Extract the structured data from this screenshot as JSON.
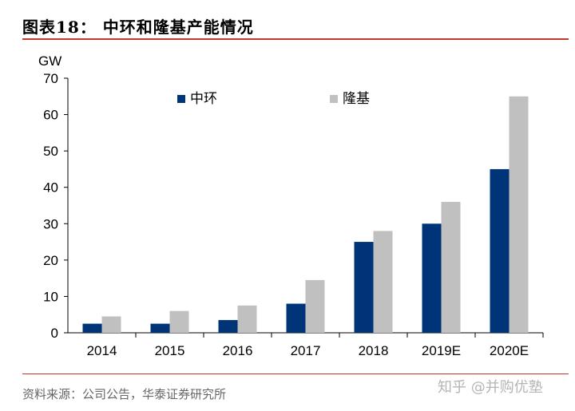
{
  "header": {
    "title": "图表18：  中环和隆基产能情况"
  },
  "footer": {
    "source": "资料来源：公司公告，华泰证券研究所",
    "watermark": "知乎 @并购优塾"
  },
  "colors": {
    "series1": "#003478",
    "series2": "#c0c0c0",
    "accent": "#c0392b"
  },
  "chart_data": {
    "type": "bar",
    "title": "",
    "xlabel": "",
    "ylabel": "GW",
    "ylim": [
      0,
      70
    ],
    "yticks": [
      0,
      10,
      20,
      30,
      40,
      50,
      60,
      70
    ],
    "grid": false,
    "legend": "top",
    "categories": [
      "2014",
      "2015",
      "2016",
      "2017",
      "2018",
      "2019E",
      "2020E"
    ],
    "series": [
      {
        "name": "中环",
        "color": "#003478",
        "values": [
          2.5,
          2.5,
          3.5,
          8,
          25,
          30,
          45
        ]
      },
      {
        "name": "隆基",
        "color": "#c0c0c0",
        "values": [
          4.5,
          6,
          7.5,
          14.5,
          28,
          36,
          65
        ]
      }
    ]
  }
}
